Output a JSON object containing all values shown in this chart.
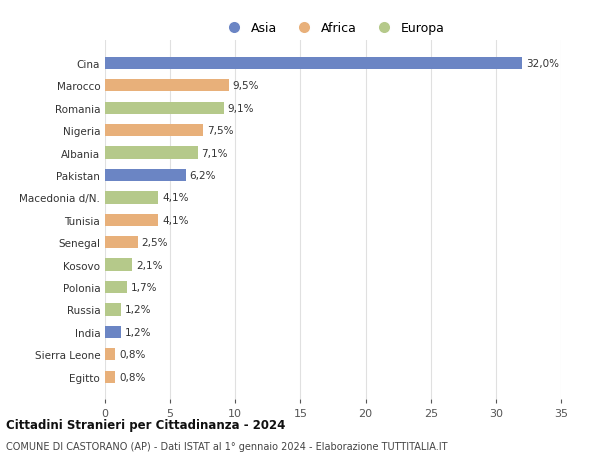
{
  "categories": [
    "Egitto",
    "Sierra Leone",
    "India",
    "Russia",
    "Polonia",
    "Kosovo",
    "Senegal",
    "Tunisia",
    "Macedonia d/N.",
    "Pakistan",
    "Albania",
    "Nigeria",
    "Romania",
    "Marocco",
    "Cina"
  ],
  "values": [
    0.8,
    0.8,
    1.2,
    1.2,
    1.7,
    2.1,
    2.5,
    4.1,
    4.1,
    6.2,
    7.1,
    7.5,
    9.1,
    9.5,
    32.0
  ],
  "labels": [
    "0,8%",
    "0,8%",
    "1,2%",
    "1,2%",
    "1,7%",
    "2,1%",
    "2,5%",
    "4,1%",
    "4,1%",
    "6,2%",
    "7,1%",
    "7,5%",
    "9,1%",
    "9,5%",
    "32,0%"
  ],
  "continents": [
    "Africa",
    "Africa",
    "Asia",
    "Europa",
    "Europa",
    "Europa",
    "Africa",
    "Africa",
    "Europa",
    "Asia",
    "Europa",
    "Africa",
    "Europa",
    "Africa",
    "Asia"
  ],
  "colors": {
    "Asia": "#6b85c4",
    "Africa": "#e8b07a",
    "Europa": "#b5c98a"
  },
  "title1": "Cittadini Stranieri per Cittadinanza - 2024",
  "title2": "COMUNE DI CASTORANO (AP) - Dati ISTAT al 1° gennaio 2024 - Elaborazione TUTTITALIA.IT",
  "xlim": [
    0,
    35
  ],
  "xticks": [
    0,
    5,
    10,
    15,
    20,
    25,
    30,
    35
  ],
  "background_color": "#ffffff",
  "bar_height": 0.55,
  "grid_color": "#e0e0e0",
  "label_fontsize": 7.5,
  "ytick_fontsize": 7.5,
  "xtick_fontsize": 8
}
